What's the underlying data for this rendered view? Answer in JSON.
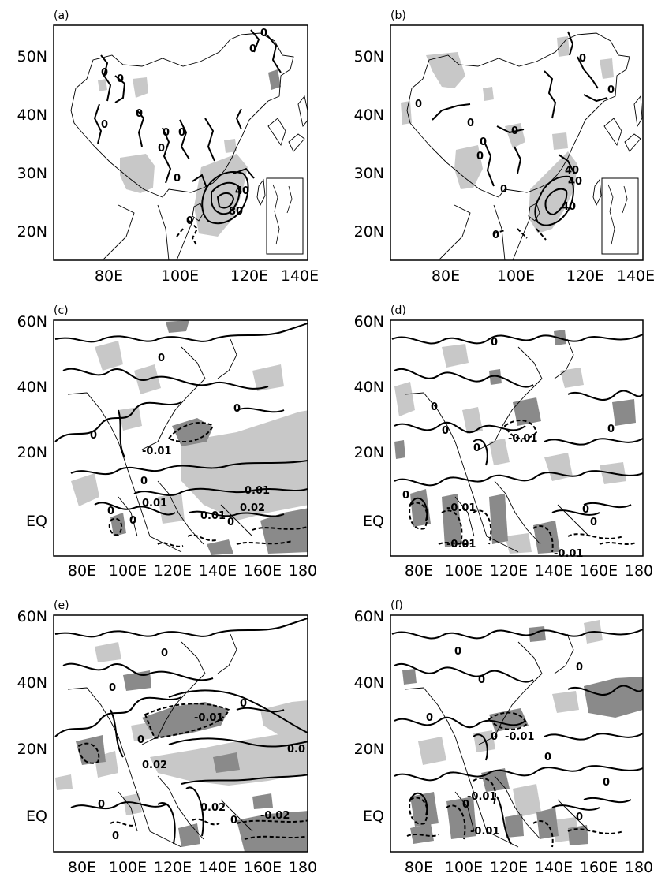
{
  "figure": {
    "panels": [
      {
        "id": "a",
        "label": "(a)",
        "lat_ticks": [
          "50N",
          "40N",
          "30N",
          "20N"
        ],
        "lon_ticks": [
          "80E",
          "100E",
          "120E",
          "140E"
        ],
        "contour_labels": [
          "0",
          "0",
          "0",
          "0",
          "0",
          "0",
          "0",
          "0",
          "0",
          "0",
          "40",
          "80",
          "0"
        ]
      },
      {
        "id": "b",
        "label": "(b)",
        "lat_ticks": [
          "50N",
          "40N",
          "30N",
          "20N"
        ],
        "lon_ticks": [
          "80E",
          "100E",
          "120E",
          "140E"
        ],
        "contour_labels": [
          "0",
          "0",
          "0",
          "0",
          "0",
          "0",
          "0",
          "0",
          "40",
          "40",
          "40",
          "0"
        ]
      },
      {
        "id": "c",
        "label": "(c)",
        "lat_ticks": [
          "60N",
          "40N",
          "20N",
          "EQ"
        ],
        "lon_ticks": [
          "80E",
          "100E",
          "120E",
          "140E",
          "160E",
          "180"
        ],
        "contour_labels": [
          "0",
          "0",
          "0",
          "-0.01",
          "0",
          "0.01",
          "0.01",
          "0.02",
          "0.01",
          "0",
          "0",
          "0"
        ]
      },
      {
        "id": "d",
        "label": "(d)",
        "lat_ticks": [
          "60N",
          "40N",
          "20N",
          "EQ"
        ],
        "lon_ticks": [
          "80E",
          "100E",
          "120E",
          "140E",
          "160E",
          "180"
        ],
        "contour_labels": [
          "0",
          "0",
          "0",
          "0",
          "0",
          "-0.01",
          "0",
          "0",
          "-0.01",
          "-0.01",
          "-0.01",
          "0"
        ]
      },
      {
        "id": "e",
        "label": "(e)",
        "lat_ticks": [
          "60N",
          "40N",
          "20N",
          "EQ"
        ],
        "lon_ticks": [
          "80E",
          "100E",
          "120E",
          "140E",
          "160E",
          "180"
        ],
        "contour_labels": [
          "0",
          "0",
          "0",
          "-0.01",
          "0",
          "0.02",
          "0.0",
          "0.02",
          "0",
          "-0.02",
          "0",
          "0"
        ]
      },
      {
        "id": "f",
        "label": "(f)",
        "lat_ticks": [
          "60N",
          "40N",
          "20N",
          "EQ"
        ],
        "lon_ticks": [
          "80E",
          "100E",
          "120E",
          "140E",
          "160E",
          "180"
        ],
        "contour_labels": [
          "0",
          "0",
          "0",
          "0",
          "-0.01",
          "-0.01",
          "0",
          "-0.01",
          "0",
          "0",
          "0",
          "0"
        ]
      }
    ]
  }
}
